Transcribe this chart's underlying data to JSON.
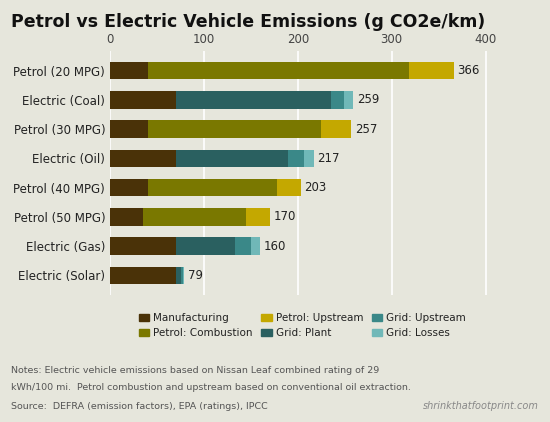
{
  "title": "Petrol vs Electric Vehicle Emissions (g CO2e/km)",
  "categories": [
    "Electric (Solar)",
    "Electric (Gas)",
    "Petrol (50 MPG)",
    "Petrol (40 MPG)",
    "Electric (Oil)",
    "Petrol (30 MPG)",
    "Electric (Coal)",
    "Petrol (20 MPG)"
  ],
  "totals": [
    79,
    160,
    170,
    203,
    217,
    257,
    259,
    366
  ],
  "segments": {
    "Manufacturing": [
      70,
      70,
      35,
      40,
      70,
      40,
      70,
      40
    ],
    "Petrol: Combustion": [
      0,
      0,
      110,
      138,
      0,
      185,
      0,
      278
    ],
    "Petrol: Upstream": [
      0,
      0,
      25,
      25,
      0,
      32,
      0,
      48
    ],
    "Grid: Plant": [
      6,
      63,
      0,
      0,
      120,
      0,
      165,
      0
    ],
    "Grid: Upstream": [
      2,
      17,
      0,
      0,
      17,
      0,
      14,
      0
    ],
    "Grid: Losses": [
      1,
      10,
      0,
      0,
      10,
      0,
      10,
      0
    ]
  },
  "colors": {
    "Manufacturing": "#4a3208",
    "Petrol: Combustion": "#7a7800",
    "Petrol: Upstream": "#c4a800",
    "Grid: Plant": "#2a6060",
    "Grid: Upstream": "#3a8888",
    "Grid: Losses": "#70b8b8"
  },
  "legend_order": [
    "Manufacturing",
    "Petrol: Combustion",
    "Petrol: Upstream",
    "Grid: Plant",
    "Grid: Upstream",
    "Grid: Losses"
  ],
  "xlim": [
    0,
    410
  ],
  "xticks": [
    0,
    100,
    200,
    300,
    400
  ],
  "background_color": "#e6e6dc",
  "note_line1": "Notes: Electric vehicle emissions based on Nissan Leaf combined rating of 29",
  "note_line2": "kWh/100 mi.  Petrol combustion and upstream based on conventional oil extraction.",
  "note_line3": "Source:  DEFRA (emission factors), EPA (ratings), IPCC",
  "watermark": "shrinkthatfootprint.com"
}
